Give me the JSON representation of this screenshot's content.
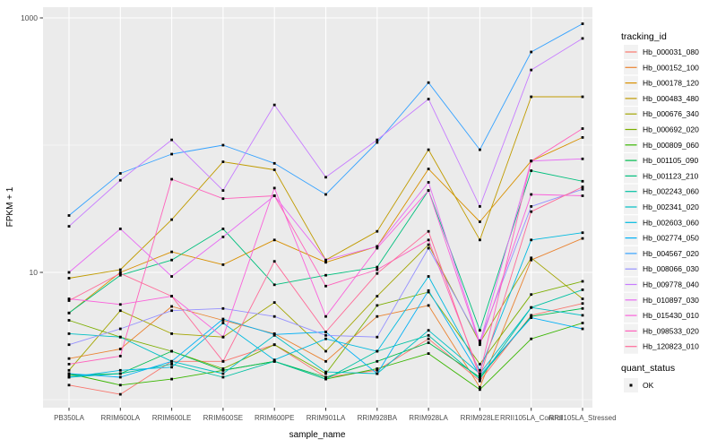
{
  "chart_data": {
    "type": "line",
    "title": "",
    "xlabel": "sample_name",
    "ylabel": "FPKM + 1",
    "y_scale": "log10",
    "ylim": [
      1,
      1000
    ],
    "y_tick_values": [
      10,
      1000
    ],
    "y_tick_labels": [
      "10",
      "1000"
    ],
    "y_grid_major": [
      10,
      1000
    ],
    "y_grid_minor": [
      1,
      100
    ],
    "grid_on": true,
    "panel_bg": "#EBEBEB",
    "grid_color": "#FFFFFF",
    "tick_color": "#333333",
    "tick_label_color": "#4D4D4D",
    "point_color": "#000000",
    "legend_position": "right",
    "legend_title": "tracking_id",
    "legend_key_bg": "#F2F2F2",
    "quant_legend": {
      "title": "quant_status",
      "items": [
        {
          "label": "OK",
          "marker": "black-square"
        }
      ]
    },
    "categories": [
      "PB350LA",
      "RRIM600LA",
      "RRIM600LE",
      "RRIM600SE",
      "RRIM600PE",
      "RRIM901LA",
      "RRIM928BA",
      "RRIM928LA",
      "RRIM928LE",
      "RRII105LA_Control",
      "RRII105LA_Stressed"
    ],
    "series": [
      {
        "name": "Hb_000031_080",
        "color": "#F8766D",
        "values": [
          1.3,
          1.1,
          2.0,
          2.0,
          2.7,
          1.5,
          1.7,
          3.0,
          1.4,
          4.6,
          5.7
        ]
      },
      {
        "name": "Hb_000152_100",
        "color": "#EA8331",
        "values": [
          2.1,
          2.5,
          5.4,
          4.2,
          3.3,
          2.0,
          4.5,
          5.5,
          1.25,
          12.5,
          18.5
        ]
      },
      {
        "name": "Hb_000178_120",
        "color": "#D89000",
        "values": [
          4.8,
          10,
          14.5,
          11.5,
          18,
          12,
          16,
          65,
          25,
          75,
          115
        ]
      },
      {
        "name": "Hb_000483_480",
        "color": "#C09B00",
        "values": [
          9,
          10.5,
          26,
          74,
          64,
          12.5,
          21,
          92,
          18,
          240,
          240
        ]
      },
      {
        "name": "Hb_000676_340",
        "color": "#A3A500",
        "values": [
          1.7,
          5.0,
          3.3,
          3.1,
          5.8,
          2.4,
          6.5,
          16.5,
          2.8,
          13,
          6.2
        ]
      },
      {
        "name": "Hb_000692_020",
        "color": "#7CAE00",
        "values": [
          4.2,
          3.1,
          2.4,
          1.75,
          2.7,
          1.6,
          5.5,
          7.0,
          1.9,
          6.7,
          8.5
        ]
      },
      {
        "name": "Hb_000809_060",
        "color": "#39B600",
        "values": [
          1.6,
          1.3,
          1.45,
          1.7,
          2.0,
          1.45,
          1.75,
          2.3,
          1.2,
          3.0,
          4.0
        ]
      },
      {
        "name": "Hb_001105_090",
        "color": "#00BB4E",
        "values": [
          1.55,
          1.6,
          2.4,
          1.7,
          2.0,
          1.5,
          2.0,
          2.8,
          1.5,
          4.5,
          5.2
        ]
      },
      {
        "name": "Hb_001123_210",
        "color": "#00BF7D",
        "values": [
          4.8,
          9.5,
          12.5,
          22,
          8,
          9.5,
          11,
          44,
          3.5,
          63,
          52
        ]
      },
      {
        "name": "Hb_002243_060",
        "color": "#00C1A3",
        "values": [
          1.5,
          1.6,
          1.9,
          1.5,
          2.0,
          1.45,
          2.4,
          3.2,
          1.45,
          5.3,
          7.3
        ]
      },
      {
        "name": "Hb_002341_020",
        "color": "#00BFC4",
        "values": [
          3.3,
          3.1,
          2.0,
          1.6,
          3.2,
          1.65,
          1.6,
          3.5,
          1.6,
          5.3,
          4.6
        ]
      },
      {
        "name": "Hb_002603_060",
        "color": "#00BAE0",
        "values": [
          1.5,
          1.7,
          1.8,
          4.0,
          2.05,
          3.0,
          2.4,
          9.3,
          1.7,
          18,
          20.5
        ]
      },
      {
        "name": "Hb_002774_050",
        "color": "#00B0F6",
        "values": [
          1.6,
          1.5,
          2.0,
          4.3,
          3.25,
          3.4,
          1.6,
          7.2,
          1.55,
          4.4,
          3.6
        ]
      },
      {
        "name": "Hb_004567_020",
        "color": "#35A2FF",
        "values": [
          28,
          60,
          85,
          100,
          72,
          41,
          105,
          310,
          92,
          540,
          900
        ]
      },
      {
        "name": "Hb_008066_030",
        "color": "#9590FF",
        "values": [
          2.7,
          3.6,
          5.0,
          5.2,
          4.5,
          3.2,
          3.1,
          15.5,
          2.9,
          33,
          45
        ]
      },
      {
        "name": "Hb_009778_040",
        "color": "#C77CFF",
        "values": [
          23,
          53,
          110,
          44,
          207,
          56,
          110,
          230,
          33,
          390,
          690
        ]
      },
      {
        "name": "Hb_010897_030",
        "color": "#E76BF3",
        "values": [
          10,
          22,
          9.3,
          19,
          40,
          12.5,
          16,
          51,
          2.8,
          75,
          78
        ]
      },
      {
        "name": "Hb_015430_010",
        "color": "#FA62DB",
        "values": [
          6.2,
          5.6,
          6.5,
          3.1,
          46,
          4.5,
          15.5,
          44,
          2.7,
          41,
          40
        ]
      },
      {
        "name": "Hb_098533_020",
        "color": "#FF62BC",
        "values": [
          1.9,
          2.2,
          54,
          38,
          40,
          7.8,
          10.5,
          18,
          1.6,
          75,
          135
        ]
      },
      {
        "name": "Hb_120823_010",
        "color": "#FF6A98",
        "values": [
          6.0,
          9.8,
          6.5,
          2.0,
          12.2,
          3.4,
          9.8,
          21,
          1.5,
          30,
          47
        ]
      }
    ]
  }
}
